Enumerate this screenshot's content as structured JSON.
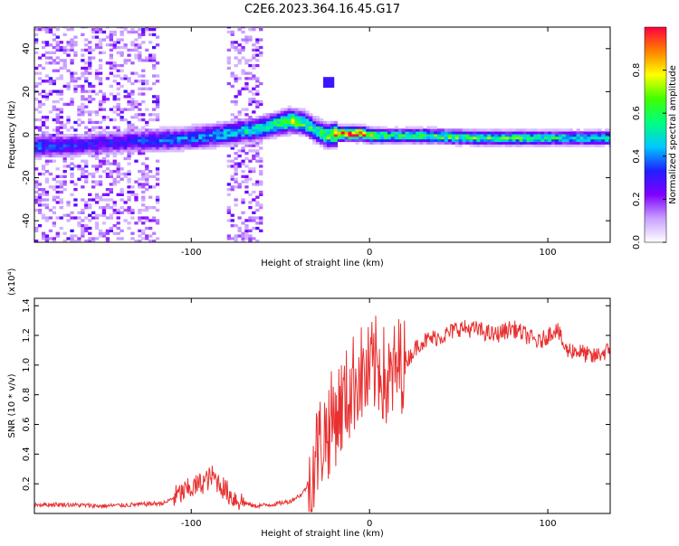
{
  "title": "C2E6.2023.364.16.45.G17",
  "colors": {
    "snr_line": "#e83030",
    "frame": "#000000"
  },
  "chart_data": [
    {
      "type": "heatmap",
      "name": "spectrogram",
      "xlabel": "Height of straight line (km)",
      "ylabel": "Frequency (Hz)",
      "xlim": [
        -188,
        135
      ],
      "ylim": [
        -50,
        50
      ],
      "xticks": [
        -100,
        0,
        100
      ],
      "xticklabels": [
        "-100",
        "0",
        "100"
      ],
      "yticks": [
        -40,
        -20,
        0,
        20,
        40
      ],
      "yticklabels": [
        "-40",
        "-20",
        "0",
        "20",
        "40"
      ],
      "colorbar": {
        "label": "Normalized spectral amplitude",
        "range": [
          0,
          1
        ],
        "ticks": [
          0.0,
          0.2,
          0.4,
          0.6,
          0.8
        ],
        "ticklabels": [
          "0.0",
          "0.2",
          "0.4",
          "0.6",
          "0.8"
        ],
        "colormap": [
          "#ffffff",
          "#c8a0ff",
          "#7f00ff",
          "#2020ff",
          "#00c8ff",
          "#00ff80",
          "#40ff00",
          "#ffff00",
          "#ff8000",
          "#ff0040"
        ]
      },
      "ridge": {
        "height_km": [
          -188,
          -160,
          -140,
          -120,
          -100,
          -80,
          -65,
          -55,
          -45,
          -38,
          -32,
          -25,
          -18,
          -10,
          -5,
          0,
          10,
          30,
          60,
          100,
          135
        ],
        "frequency_hz": [
          -6,
          -5,
          -4,
          -3,
          -2,
          0,
          2,
          4,
          6,
          5,
          2,
          -1,
          0,
          0,
          0,
          -1,
          -1,
          -1,
          -2,
          -2,
          -2
        ],
        "amplitude": [
          0.35,
          0.3,
          0.3,
          0.35,
          0.4,
          0.45,
          0.5,
          0.55,
          0.7,
          0.6,
          0.55,
          0.6,
          0.9,
          0.95,
          0.9,
          0.7,
          0.55,
          0.6,
          0.6,
          0.55,
          0.5
        ]
      }
    },
    {
      "type": "line",
      "name": "snr",
      "xlabel": "Height of straight line (km)",
      "ylabel": "SNR (10 * v/v)",
      "yscale_label": "(x10⁴)",
      "xlim": [
        -188,
        135
      ],
      "ylim": [
        0,
        1.45
      ],
      "xticks": [
        -100,
        0,
        100
      ],
      "xticklabels": [
        "-100",
        "0",
        "100"
      ],
      "yticks": [
        0.2,
        0.4,
        0.6,
        0.8,
        1.0,
        1.2,
        1.4
      ],
      "yticklabels": [
        "0.2",
        "0.4",
        "0.6",
        "0.8",
        "1.0",
        "1.2",
        "1.4"
      ],
      "series": [
        {
          "x": [
            -188,
            -170,
            -150,
            -130,
            -115,
            -105,
            -98,
            -92,
            -88,
            -84,
            -78,
            -72,
            -65,
            -55,
            -45,
            -38,
            -33,
            -30,
            -27,
            -24,
            -22,
            -20,
            -17,
            -14,
            -10,
            -6,
            -2,
            2,
            6,
            10,
            14,
            18,
            22,
            28,
            35,
            42,
            50,
            60,
            70,
            80,
            88,
            95,
            100,
            105,
            110,
            115,
            120,
            125,
            130,
            135
          ],
          "y": [
            0.06,
            0.06,
            0.05,
            0.06,
            0.07,
            0.14,
            0.18,
            0.22,
            0.25,
            0.2,
            0.12,
            0.08,
            0.05,
            0.06,
            0.08,
            0.13,
            0.22,
            0.4,
            0.5,
            0.55,
            0.6,
            0.65,
            0.7,
            0.75,
            0.85,
            0.95,
            0.9,
            0.98,
            1.0,
            0.85,
            0.95,
            1.02,
            1.05,
            1.15,
            1.18,
            1.2,
            1.25,
            1.24,
            1.2,
            1.25,
            1.2,
            1.15,
            1.2,
            1.25,
            1.1,
            1.1,
            1.08,
            1.05,
            1.08,
            1.1
          ]
        }
      ]
    }
  ]
}
